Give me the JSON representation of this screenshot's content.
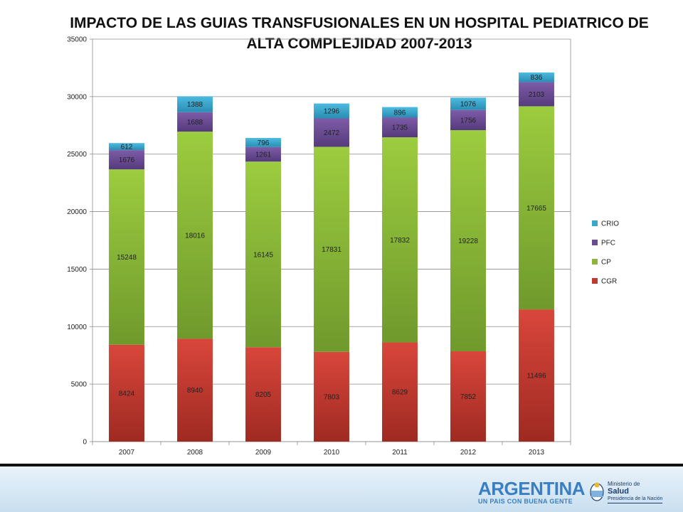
{
  "chart_data": {
    "type": "bar",
    "stacked": true,
    "title": "IMPACTO DE LAS GUIAS TRANSFUSIONALES EN UN HOSPITAL PEDIATRICO DE ALTA COMPLEJIDAD 2007-2013",
    "categories": [
      "2007",
      "2008",
      "2009",
      "2010",
      "2011",
      "2012",
      "2013"
    ],
    "series": [
      {
        "name": "CGR",
        "color": "#c0392f",
        "values": [
          8424,
          8940,
          8205,
          7803,
          8629,
          7852,
          11496
        ]
      },
      {
        "name": "CP",
        "color": "#8cb43a",
        "values": [
          15248,
          18016,
          16145,
          17831,
          17832,
          19228,
          17665
        ]
      },
      {
        "name": "PFC",
        "color": "#6a4c93",
        "values": [
          1676,
          1688,
          1261,
          2472,
          1735,
          1756,
          2103
        ]
      },
      {
        "name": "CRIO",
        "color": "#3aa7cc",
        "values": [
          612,
          1388,
          796,
          1296,
          896,
          1076,
          836
        ]
      }
    ],
    "ylim": [
      0,
      35000
    ],
    "yticks": [
      0,
      5000,
      10000,
      15000,
      20000,
      25000,
      30000,
      35000
    ],
    "xlabel": "",
    "ylabel": "",
    "grid": true,
    "legend_position": "right"
  },
  "footer": {
    "brand_name": "ARGENTINA",
    "brand_slogan": "UN PAIS CON BUENA GENTE",
    "ministry_line1": "Ministerio de",
    "ministry_line2": "Salud",
    "ministry_line3": "Presidencia de la Nación"
  }
}
